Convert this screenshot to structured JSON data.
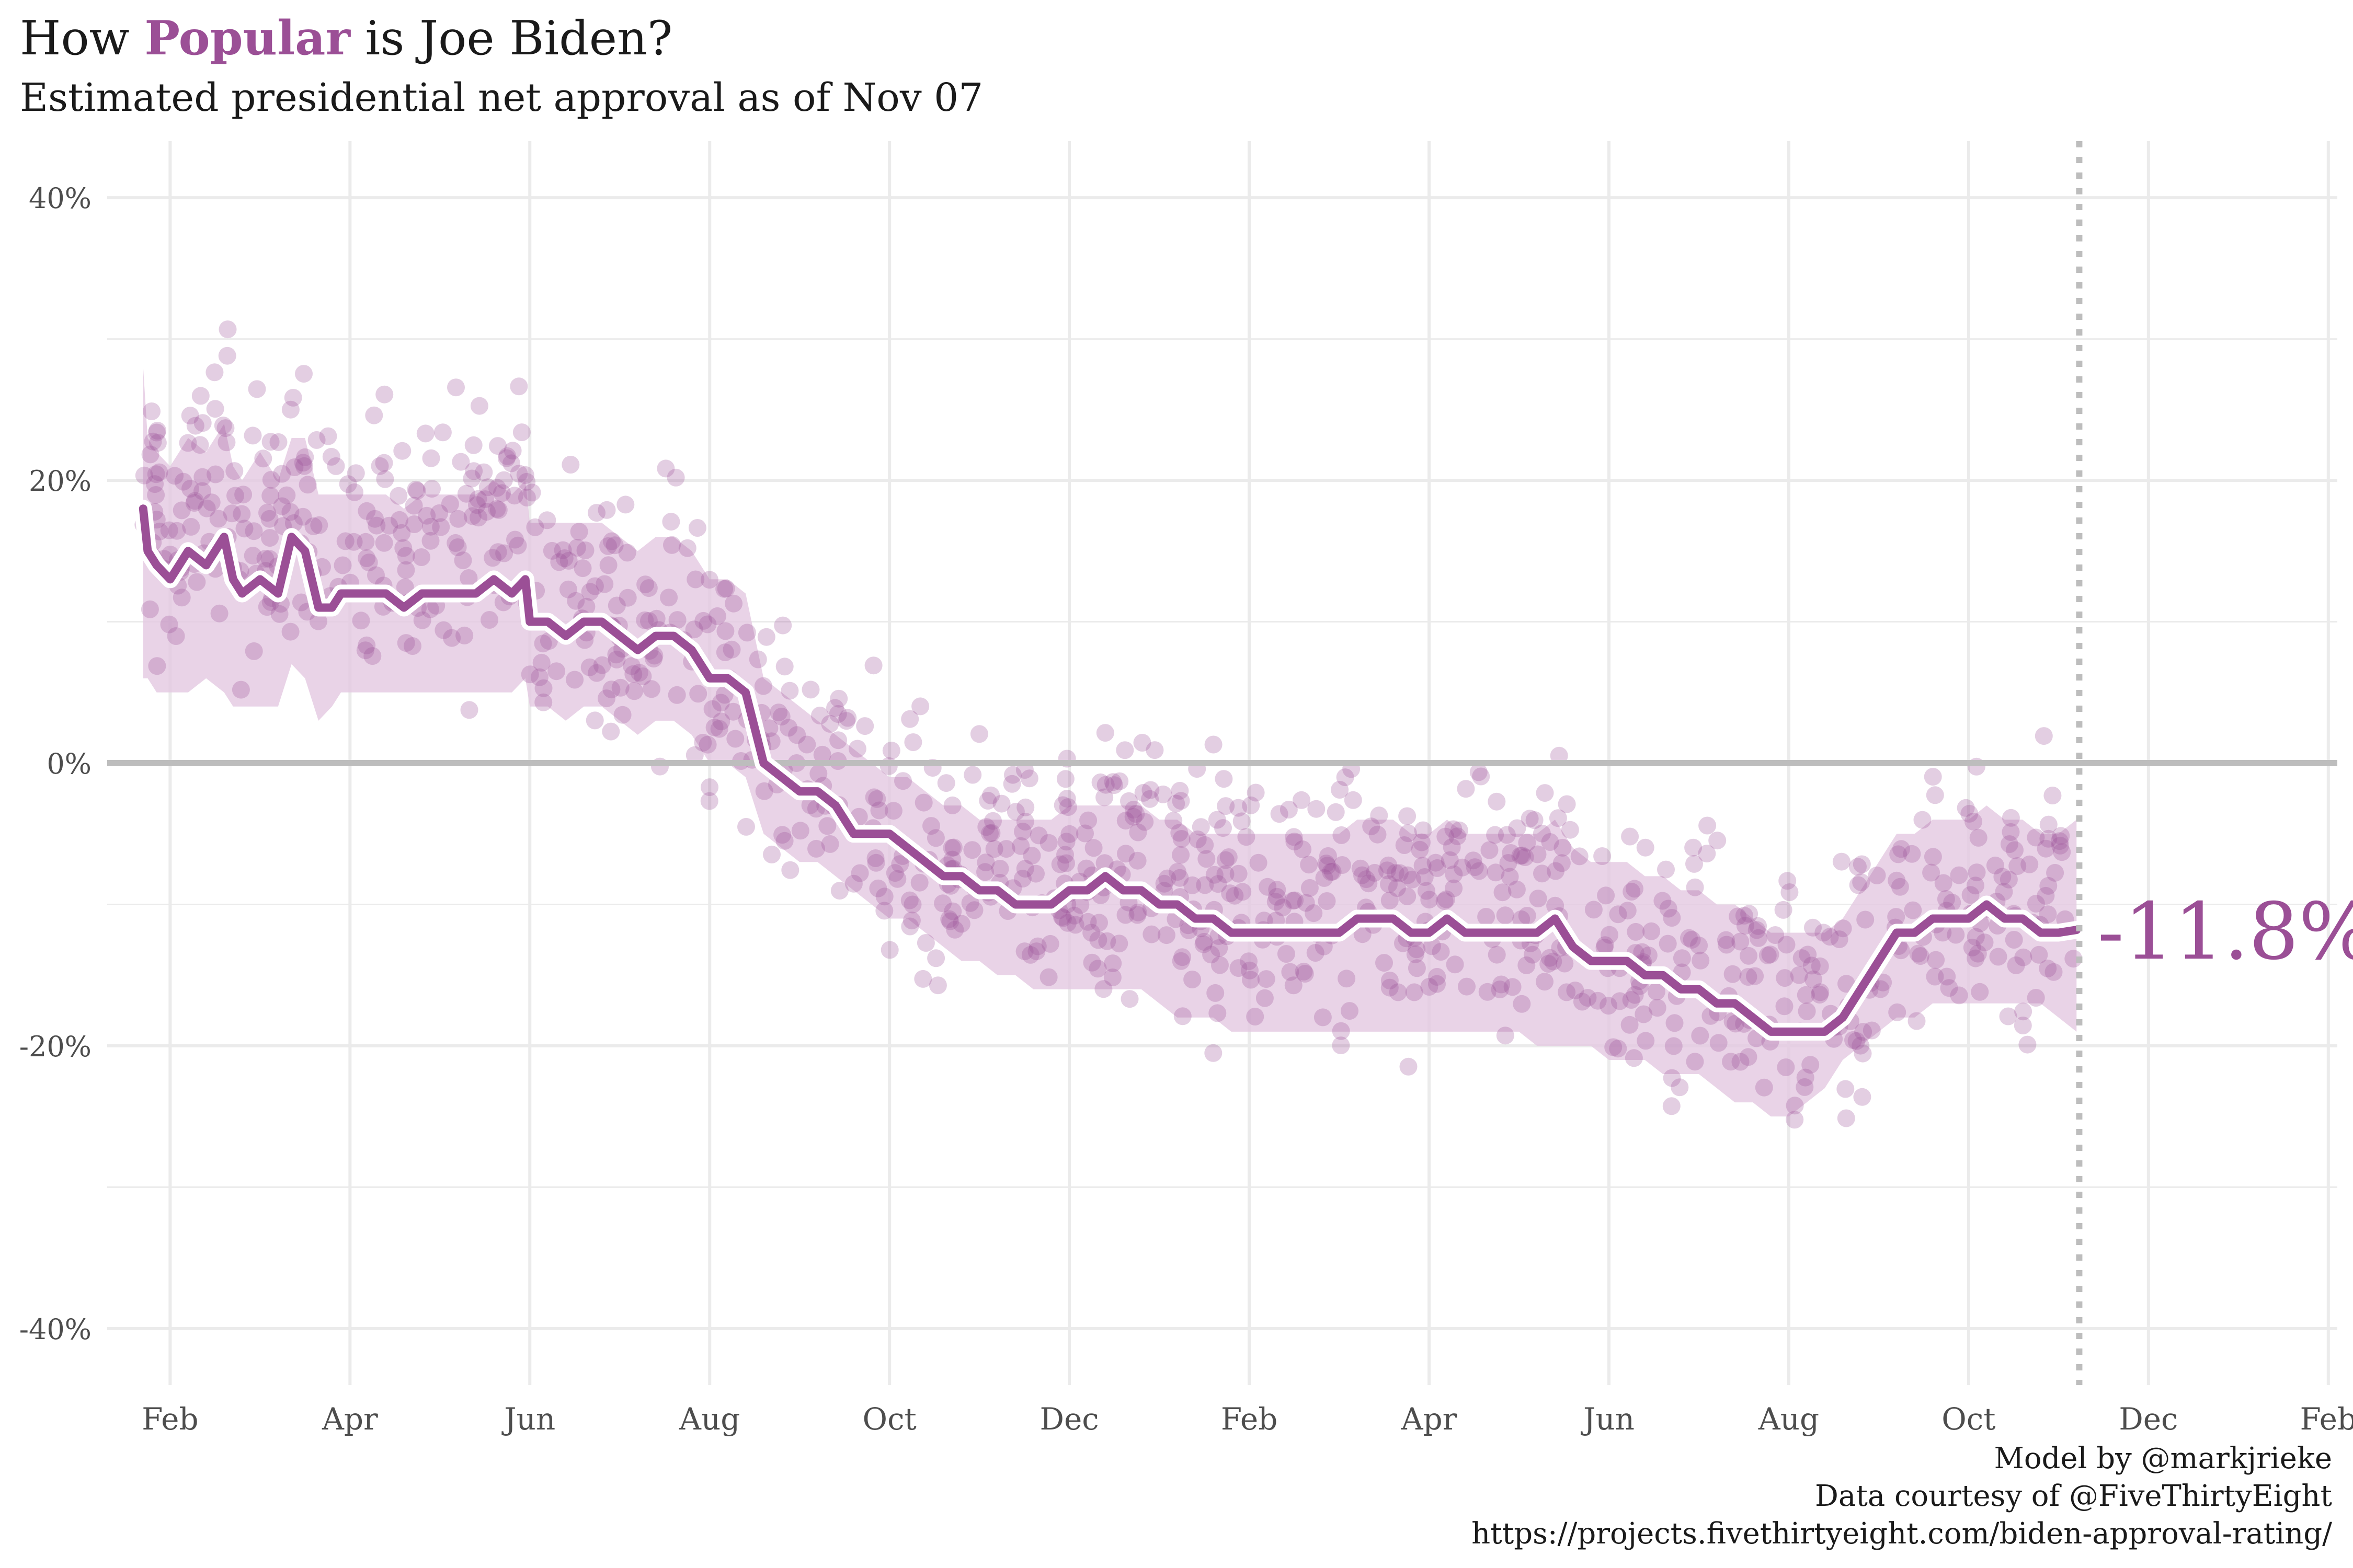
{
  "header": {
    "title_prefix": "How",
    "title_highlight": "Popular",
    "title_suffix": "is Joe Biden?",
    "subtitle": "Estimated presidential net approval as of Nov 07"
  },
  "caption": {
    "line1": "Model by @markjrieke",
    "line2": "Data courtesy of @FiveThirtyEight",
    "line3": "https://projects.fivethirtyeight.com/biden-approval-rating/"
  },
  "colors": {
    "accent": "#9b4f96",
    "band": "#e3c8e1",
    "grid": "#ebebeb",
    "zero_line": "#bdbdbd",
    "axis_text": "#4d4d4d"
  },
  "chart_data": {
    "type": "line",
    "title": "How Popular is Joe Biden?",
    "subtitle": "Estimated presidential net approval as of Nov 07",
    "xlabel": "",
    "ylabel": "",
    "x_unit": "months since Jan 1, 2021",
    "xlim": [
      0.3,
      25.1
    ],
    "ylim": [
      -44,
      44
    ],
    "x_ticks": [
      {
        "x": 1,
        "label": "Feb"
      },
      {
        "x": 3,
        "label": "Apr"
      },
      {
        "x": 5,
        "label": "Jun"
      },
      {
        "x": 7,
        "label": "Aug"
      },
      {
        "x": 9,
        "label": "Oct"
      },
      {
        "x": 11,
        "label": "Dec"
      },
      {
        "x": 13,
        "label": "Feb"
      },
      {
        "x": 15,
        "label": "Apr"
      },
      {
        "x": 17,
        "label": "Jun"
      },
      {
        "x": 19,
        "label": "Aug"
      },
      {
        "x": 21,
        "label": "Oct"
      },
      {
        "x": 23,
        "label": "Dec"
      },
      {
        "x": 25,
        "label": "Feb"
      }
    ],
    "y_ticks": [
      {
        "y": 40,
        "label": "40%"
      },
      {
        "y": 20,
        "label": "20%"
      },
      {
        "y": 0,
        "label": "0%"
      },
      {
        "y": -20,
        "label": "-20%"
      },
      {
        "y": -40,
        "label": "-40%"
      }
    ],
    "reference_line_x": 22.23,
    "final_label": "-11.8%",
    "series": [
      {
        "name": "Estimated net approval",
        "x": [
          0.7,
          0.75,
          0.85,
          1.0,
          1.2,
          1.4,
          1.6,
          1.7,
          1.8,
          2.0,
          2.2,
          2.35,
          2.5,
          2.65,
          2.8,
          2.9,
          3.0,
          3.2,
          3.4,
          3.6,
          3.8,
          4.0,
          4.2,
          4.4,
          4.6,
          4.8,
          4.95,
          5.0,
          5.2,
          5.4,
          5.6,
          5.8,
          6.0,
          6.2,
          6.4,
          6.6,
          6.8,
          7.0,
          7.2,
          7.4,
          7.6,
          7.8,
          8.0,
          8.2,
          8.4,
          8.6,
          8.8,
          9.0,
          9.2,
          9.4,
          9.6,
          9.8,
          10.0,
          10.2,
          10.4,
          10.6,
          10.8,
          11.0,
          11.2,
          11.4,
          11.6,
          11.8,
          12.0,
          12.2,
          12.4,
          12.6,
          12.8,
          13.0,
          13.2,
          13.4,
          13.6,
          13.8,
          14.0,
          14.2,
          14.4,
          14.6,
          14.8,
          15.0,
          15.2,
          15.4,
          15.6,
          15.8,
          16.0,
          16.2,
          16.4,
          16.6,
          16.8,
          17.0,
          17.2,
          17.4,
          17.6,
          17.8,
          18.0,
          18.2,
          18.4,
          18.6,
          18.8,
          19.0,
          19.2,
          19.4,
          19.6,
          19.8,
          20.0,
          20.2,
          20.4,
          20.6,
          20.8,
          21.0,
          21.2,
          21.4,
          21.6,
          21.8,
          22.0,
          22.2
        ],
        "y": [
          18,
          15,
          14,
          13,
          15,
          14,
          16,
          13,
          12,
          13,
          12,
          16,
          15,
          11,
          11,
          12,
          12,
          12,
          12,
          11,
          12,
          12,
          12,
          12,
          13,
          12,
          13,
          10,
          10,
          9,
          10,
          10,
          9,
          8,
          9,
          9,
          8,
          6,
          6,
          5,
          0,
          -1,
          -2,
          -2,
          -3,
          -5,
          -5,
          -5,
          -6,
          -7,
          -8,
          -8,
          -9,
          -9,
          -10,
          -10,
          -10,
          -9,
          -9,
          -8,
          -9,
          -9,
          -10,
          -10,
          -11,
          -11,
          -12,
          -12,
          -12,
          -12,
          -12,
          -12,
          -12,
          -11,
          -11,
          -11,
          -12,
          -12,
          -11,
          -12,
          -12,
          -12,
          -12,
          -12,
          -11,
          -13,
          -14,
          -14,
          -14,
          -15,
          -15,
          -16,
          -16,
          -17,
          -17,
          -18,
          -19,
          -19,
          -19,
          -19,
          -18,
          -16,
          -14,
          -12,
          -12,
          -11,
          -11,
          -11,
          -10,
          -11,
          -11,
          -12,
          -12,
          -11.8
        ],
        "lower": [
          6,
          6,
          5,
          5,
          5,
          6,
          5,
          4,
          4,
          4,
          4,
          7,
          6,
          3,
          4,
          5,
          5,
          5,
          5,
          5,
          5,
          5,
          5,
          5,
          5,
          5,
          6,
          4,
          4,
          3,
          4,
          4,
          3,
          2,
          3,
          3,
          2,
          0,
          0,
          -1,
          -5,
          -6,
          -7,
          -7,
          -8,
          -9,
          -10,
          -11,
          -11,
          -12,
          -13,
          -14,
          -14,
          -15,
          -15,
          -16,
          -16,
          -16,
          -16,
          -16,
          -16,
          -16,
          -17,
          -18,
          -18,
          -18,
          -19,
          -19,
          -19,
          -19,
          -19,
          -19,
          -19,
          -19,
          -19,
          -19,
          -19,
          -19,
          -19,
          -19,
          -19,
          -19,
          -19,
          -20,
          -20,
          -20,
          -20,
          -21,
          -21,
          -21,
          -22,
          -22,
          -22,
          -23,
          -24,
          -24,
          -25,
          -25,
          -24,
          -23,
          -21,
          -20,
          -19,
          -18,
          -18,
          -17,
          -17,
          -17,
          -17,
          -17,
          -17,
          -17,
          -18,
          -19
        ],
        "upper": [
          28,
          23,
          22,
          21,
          23,
          22,
          24,
          21,
          20,
          22,
          20,
          23,
          23,
          19,
          19,
          19,
          19,
          19,
          19,
          18,
          19,
          19,
          19,
          19,
          20,
          19,
          20,
          17,
          17,
          17,
          17,
          17,
          16,
          15,
          16,
          16,
          15,
          13,
          13,
          12,
          6,
          5,
          4,
          3,
          2,
          1,
          0,
          -1,
          -1,
          -2,
          -3,
          -3,
          -4,
          -4,
          -4,
          -4,
          -4,
          -3,
          -3,
          -3,
          -3,
          -3,
          -4,
          -4,
          -5,
          -5,
          -5,
          -5,
          -5,
          -5,
          -5,
          -5,
          -5,
          -4,
          -4,
          -4,
          -5,
          -5,
          -4,
          -5,
          -5,
          -5,
          -5,
          -5,
          -4,
          -6,
          -7,
          -7,
          -7,
          -8,
          -8,
          -9,
          -9,
          -10,
          -10,
          -11,
          -12,
          -12,
          -12,
          -12,
          -11,
          -9,
          -7,
          -5,
          -5,
          -4,
          -4,
          -4,
          -3,
          -4,
          -4,
          -5,
          -5,
          -4
        ]
      }
    ],
    "scatter_note": "individual polls shown as translucent dots around the trend"
  }
}
